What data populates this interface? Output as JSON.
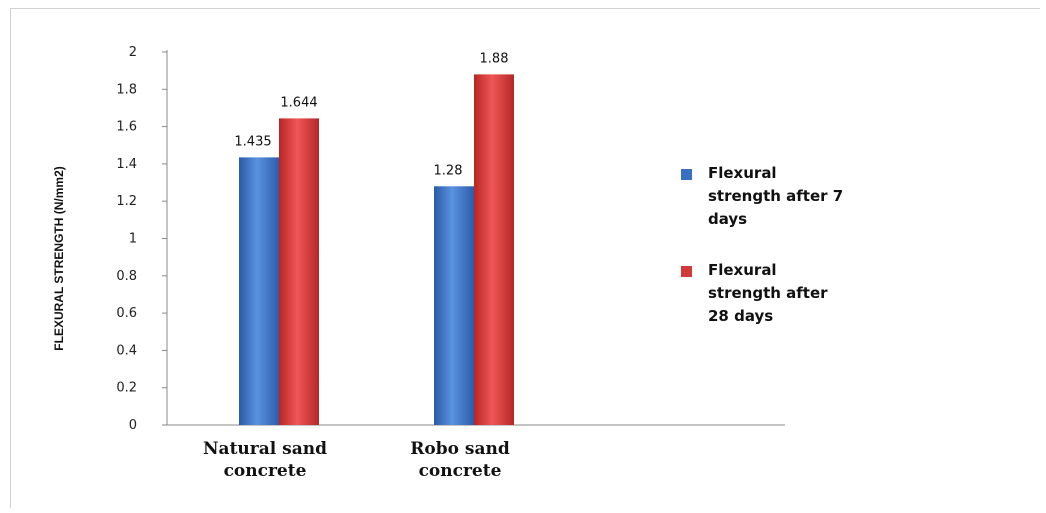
{
  "chart_data": {
    "type": "bar",
    "title": "",
    "xlabel": "",
    "ylabel": "FLEXURAL STRENGTH  (N/mm2)",
    "ylim": [
      0,
      2
    ],
    "yticks": [
      "0",
      "0.2",
      "0.4",
      "0.6",
      "0.8",
      "1",
      "1.2",
      "1.4",
      "1.6",
      "1.8",
      "2"
    ],
    "categories": [
      [
        "Natural sand",
        "concrete"
      ],
      [
        "Robo sand",
        "concrete"
      ]
    ],
    "series": [
      {
        "name": "Flexural strength after 7 days",
        "legend_lines": [
          "Flexural",
          "strength after 7",
          "days"
        ],
        "color": "#3a70c4",
        "values": [
          1.435,
          1.28
        ],
        "labels": [
          "1.435",
          "1.28"
        ]
      },
      {
        "name": "Flexural strength after 28 days",
        "legend_lines": [
          "Flexural",
          "strength after",
          "28 days"
        ],
        "color": "#d23a3a",
        "values": [
          1.644,
          1.88
        ],
        "labels": [
          "1.644",
          "1.88"
        ]
      }
    ],
    "legend": "right",
    "grid": false
  }
}
